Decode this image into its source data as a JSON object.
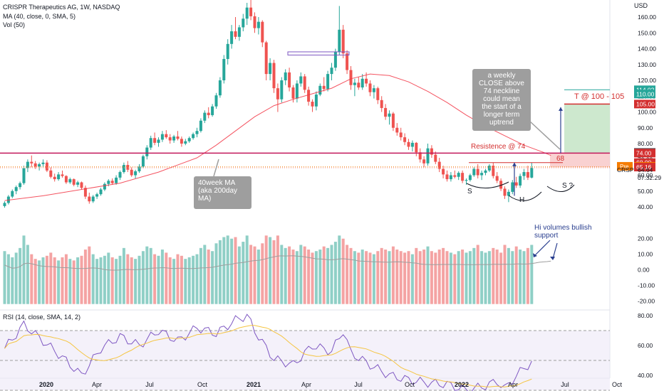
{
  "header": {
    "title": "CRISPR Therapeutics AG, 1W, NASDAQ",
    "ma": "MA (40, close, 0, SMA, 5)",
    "vol": "Vol (50)",
    "rsi": "RSI (14, close, SMA, 14, 2)"
  },
  "annotations": {
    "ma_callout": "40week MA\n(aka 200day\nMA)",
    "weekly_callout": "a weekly\nCLOSE above\n74 neckline\ncould mean\nthe start of a\nlonger term\nuptrend",
    "resistance": "Resistence @ 74",
    "target": "T @  100 - 105",
    "volumes": "Hi volumes bullish\nsupport",
    "s_left": "S",
    "h": "H",
    "s_right": "S ?",
    "level_68": "68"
  },
  "colors": {
    "up": "#26a69a",
    "down": "#ef5350",
    "vol_up": "#8fcfc6",
    "vol_down": "#f4a3a3",
    "ma": "#f23645",
    "rsi": "#7e57c2",
    "rsi_ma": "#f5c542",
    "resistance": "#c2185b",
    "target_fill": "#c8e6c9",
    "target_line": "#d32f2f",
    "arrow": "#2a3f8f"
  },
  "chart_data": {
    "type": "candlestick",
    "title": "CRISPR Therapeutics AG, 1W, NASDAQ",
    "price_axis": {
      "ticks": [
        160,
        150,
        140,
        130,
        120,
        110,
        100,
        90,
        80,
        70,
        60,
        50,
        40
      ],
      "labels": [
        "160.00",
        "150.00",
        "140.00",
        "130.00",
        "120.00",
        "110.00",
        "100.00",
        "90.00",
        "80.00",
        "70.00",
        "60.00",
        "50.00",
        "40.00"
      ]
    },
    "volume_axis": {
      "ticks": [
        20,
        10,
        0,
        -10,
        -20
      ],
      "labels": [
        "20.00",
        "10.00",
        "0.00",
        "-10.00",
        "-20.00"
      ]
    },
    "rsi_axis": {
      "ticks": [
        80,
        60,
        40
      ],
      "labels": [
        "80.00",
        "60.00",
        "40.00"
      ],
      "bands": [
        70,
        50,
        30
      ]
    },
    "time_axis": {
      "labels": [
        "2020",
        "Apr",
        "Jul",
        "Oct",
        "2021",
        "Apr",
        "Jul",
        "Oct",
        "2022",
        "Apr",
        "Jul",
        "Oct"
      ]
    },
    "last_price": "64.64",
    "countdown": "07:32:29",
    "symbol": "CRSP",
    "price_tags": [
      {
        "label": "114.02",
        "value": 114.02,
        "color": "#26a69a"
      },
      {
        "label": "110.00",
        "value": 110.0,
        "color": "#26a69a"
      },
      {
        "label": "105.00",
        "value": 105.0,
        "color": "#d32f2f"
      },
      {
        "label": "74.42",
        "value": 74.42,
        "color": "#434651"
      },
      {
        "label": "74.00",
        "value": 74.0,
        "color": "#d32f2f"
      },
      {
        "label": "68.00",
        "value": 68.0,
        "color": "#d32f2f"
      },
      {
        "label": "65.65",
        "value": 65.65,
        "color": "#f57c00",
        "prefix": "Pre"
      },
      {
        "label": "65.16",
        "value": 65.16,
        "color": "#d32f2f"
      }
    ],
    "levels": {
      "resistance": 74,
      "neckline_zone": [
        65,
        74
      ],
      "target": [
        100,
        105
      ]
    },
    "ohlc": [
      [
        40.5,
        43.5,
        39.5,
        42.5
      ],
      [
        42.5,
        47.5,
        41.5,
        46.5
      ],
      [
        46.5,
        51.0,
        45.5,
        50.0
      ],
      [
        50.0,
        53.5,
        48.0,
        52.5
      ],
      [
        52.5,
        56.0,
        51.0,
        55.0
      ],
      [
        55.0,
        66.0,
        54.0,
        64.5
      ],
      [
        64.5,
        70.0,
        62.0,
        68.5
      ],
      [
        68.5,
        72.5,
        65.0,
        67.5
      ],
      [
        67.5,
        69.0,
        64.0,
        65.5
      ],
      [
        65.5,
        68.0,
        63.0,
        67.0
      ],
      [
        67.0,
        70.0,
        65.0,
        68.0
      ],
      [
        68.0,
        69.5,
        62.0,
        63.0
      ],
      [
        63.0,
        65.0,
        58.0,
        59.0
      ],
      [
        59.0,
        61.0,
        56.0,
        57.5
      ],
      [
        57.5,
        62.0,
        56.5,
        60.5
      ],
      [
        60.5,
        63.0,
        58.5,
        59.5
      ],
      [
        59.5,
        60.0,
        54.5,
        55.5
      ],
      [
        55.5,
        58.5,
        54.5,
        57.5
      ],
      [
        57.5,
        58.0,
        53.0,
        54.0
      ],
      [
        54.0,
        56.5,
        52.5,
        55.5
      ],
      [
        55.5,
        56.0,
        51.0,
        52.0
      ],
      [
        52.0,
        53.5,
        45.0,
        46.5
      ],
      [
        46.5,
        49.0,
        42.0,
        43.5
      ],
      [
        43.5,
        47.5,
        42.5,
        46.5
      ],
      [
        46.5,
        49.0,
        45.0,
        48.0
      ],
      [
        48.0,
        52.0,
        47.0,
        51.0
      ],
      [
        51.0,
        55.5,
        50.0,
        54.5
      ],
      [
        54.5,
        57.5,
        53.0,
        56.5
      ],
      [
        56.5,
        58.0,
        54.0,
        55.0
      ],
      [
        55.0,
        60.0,
        54.0,
        58.5
      ],
      [
        58.5,
        63.0,
        57.0,
        62.0
      ],
      [
        62.0,
        68.0,
        61.0,
        66.5
      ],
      [
        66.5,
        69.0,
        62.0,
        63.5
      ],
      [
        63.5,
        65.0,
        59.0,
        60.0
      ],
      [
        60.0,
        63.5,
        58.0,
        62.5
      ],
      [
        62.5,
        67.0,
        61.5,
        65.5
      ],
      [
        65.5,
        73.0,
        64.5,
        72.0
      ],
      [
        72.0,
        79.0,
        70.0,
        77.5
      ],
      [
        77.5,
        85.0,
        76.0,
        83.5
      ],
      [
        83.5,
        87.0,
        79.0,
        80.5
      ],
      [
        80.5,
        84.0,
        78.0,
        82.5
      ],
      [
        82.5,
        88.0,
        81.0,
        86.0
      ],
      [
        86.0,
        88.5,
        83.0,
        84.0
      ],
      [
        84.0,
        86.0,
        80.0,
        82.0
      ],
      [
        82.0,
        85.5,
        80.5,
        84.5
      ],
      [
        84.5,
        88.0,
        82.0,
        83.0
      ],
      [
        83.0,
        84.5,
        78.0,
        80.0
      ],
      [
        80.0,
        83.0,
        79.0,
        81.5
      ],
      [
        81.5,
        84.5,
        80.5,
        83.5
      ],
      [
        83.5,
        87.0,
        82.5,
        86.0
      ],
      [
        86.0,
        90.0,
        84.0,
        88.0
      ],
      [
        88.0,
        96.0,
        87.0,
        94.5
      ],
      [
        94.5,
        101.0,
        93.0,
        99.5
      ],
      [
        99.5,
        103.0,
        96.0,
        98.0
      ],
      [
        98.0,
        105.0,
        97.0,
        103.5
      ],
      [
        103.5,
        112.0,
        102.0,
        110.5
      ],
      [
        110.5,
        122.0,
        109.0,
        120.0
      ],
      [
        120.0,
        136.0,
        118.0,
        133.5
      ],
      [
        133.5,
        146.0,
        130.0,
        143.0
      ],
      [
        143.0,
        155.0,
        140.0,
        151.0
      ],
      [
        151.0,
        160.0,
        146.0,
        147.5
      ],
      [
        147.5,
        155.0,
        145.0,
        153.5
      ],
      [
        153.5,
        162.0,
        151.0,
        159.0
      ],
      [
        159.0,
        169.0,
        155.0,
        166.0
      ],
      [
        166.0,
        171.0,
        158.0,
        160.5
      ],
      [
        160.5,
        163.0,
        150.0,
        153.0
      ],
      [
        153.0,
        160.0,
        149.0,
        157.0
      ],
      [
        157.0,
        158.0,
        141.0,
        144.0
      ],
      [
        144.0,
        145.0,
        120.0,
        124.0
      ],
      [
        124.0,
        134.0,
        120.0,
        131.0
      ],
      [
        131.0,
        133.0,
        112.0,
        115.0
      ],
      [
        115.0,
        118.0,
        100.0,
        108.0
      ],
      [
        108.0,
        122.0,
        106.0,
        120.0
      ],
      [
        120.0,
        127.0,
        117.0,
        125.0
      ],
      [
        125.0,
        128.0,
        113.0,
        115.5
      ],
      [
        115.5,
        117.0,
        106.0,
        108.5
      ],
      [
        108.5,
        120.0,
        106.0,
        118.0
      ],
      [
        118.0,
        125.0,
        116.0,
        122.5
      ],
      [
        122.5,
        124.0,
        112.0,
        114.0
      ],
      [
        114.0,
        116.0,
        104.0,
        106.5
      ],
      [
        106.5,
        108.0,
        100.0,
        103.5
      ],
      [
        103.5,
        113.0,
        101.0,
        111.0
      ],
      [
        111.0,
        118.0,
        110.0,
        116.5
      ],
      [
        116.5,
        122.0,
        113.0,
        114.5
      ],
      [
        114.5,
        126.0,
        113.0,
        124.0
      ],
      [
        124.0,
        131.0,
        120.0,
        128.0
      ],
      [
        128.0,
        140.0,
        126.0,
        138.0
      ],
      [
        138.0,
        167.0,
        136.0,
        152.0
      ],
      [
        152.0,
        155.0,
        134.0,
        137.0
      ],
      [
        137.0,
        139.0,
        124.0,
        126.5
      ],
      [
        126.5,
        129.0,
        114.0,
        117.0
      ],
      [
        117.0,
        121.0,
        110.0,
        118.5
      ],
      [
        118.5,
        122.0,
        114.0,
        115.5
      ],
      [
        115.5,
        124.0,
        114.0,
        121.0
      ],
      [
        121.0,
        125.0,
        116.0,
        118.0
      ],
      [
        118.0,
        120.0,
        110.0,
        112.5
      ],
      [
        112.5,
        117.0,
        108.5,
        115.0
      ],
      [
        115.0,
        116.0,
        105.0,
        107.5
      ],
      [
        107.5,
        110.0,
        100.0,
        102.5
      ],
      [
        102.5,
        105.0,
        95.0,
        97.0
      ],
      [
        97.0,
        101.0,
        92.0,
        99.0
      ],
      [
        99.0,
        100.0,
        88.0,
        90.0
      ],
      [
        90.0,
        93.0,
        85.0,
        87.0
      ],
      [
        87.0,
        90.0,
        82.0,
        84.0
      ],
      [
        84.0,
        86.5,
        79.0,
        81.0
      ],
      [
        81.0,
        83.0,
        76.0,
        78.0
      ],
      [
        78.0,
        82.0,
        75.0,
        80.5
      ],
      [
        80.5,
        81.0,
        72.0,
        74.5
      ],
      [
        74.5,
        77.0,
        68.0,
        70.0
      ],
      [
        70.0,
        72.0,
        65.0,
        67.5
      ],
      [
        67.5,
        80.0,
        66.0,
        77.0
      ],
      [
        77.0,
        79.0,
        71.0,
        73.0
      ],
      [
        73.0,
        75.0,
        67.0,
        68.5
      ],
      [
        68.5,
        71.0,
        62.0,
        64.0
      ],
      [
        64.0,
        66.0,
        58.0,
        60.5
      ],
      [
        60.5,
        63.0,
        56.0,
        57.5
      ],
      [
        57.5,
        62.0,
        56.0,
        60.0
      ],
      [
        60.0,
        63.0,
        58.0,
        59.0
      ],
      [
        59.0,
        62.5,
        57.0,
        61.5
      ],
      [
        61.5,
        63.0,
        55.0,
        56.5
      ],
      [
        56.5,
        58.0,
        54.0,
        57.0
      ],
      [
        57.0,
        61.0,
        56.0,
        60.0
      ],
      [
        60.0,
        65.0,
        59.0,
        64.0
      ],
      [
        64.0,
        67.0,
        58.0,
        60.0
      ],
      [
        60.0,
        63.0,
        57.0,
        61.5
      ],
      [
        61.5,
        64.0,
        60.0,
        63.0
      ],
      [
        63.0,
        67.0,
        62.0,
        66.0
      ],
      [
        66.0,
        68.0,
        58.0,
        59.5
      ],
      [
        59.5,
        62.0,
        55.0,
        56.5
      ],
      [
        56.5,
        58.0,
        50.0,
        51.5
      ],
      [
        51.5,
        53.0,
        45.0,
        47.0
      ],
      [
        47.0,
        51.0,
        43.0,
        49.5
      ],
      [
        49.5,
        57.0,
        48.0,
        55.5
      ],
      [
        55.5,
        59.0,
        52.0,
        53.5
      ],
      [
        53.5,
        61.0,
        52.0,
        59.5
      ],
      [
        59.5,
        64.0,
        57.0,
        62.0
      ],
      [
        62.0,
        66.0,
        57.0,
        58.5
      ],
      [
        58.5,
        68.0,
        58.0,
        64.64
      ]
    ],
    "ma40": [
      [
        0,
        44.0
      ],
      [
        10,
        47.0
      ],
      [
        20,
        51.0
      ],
      [
        30,
        55.0
      ],
      [
        40,
        62.0
      ],
      [
        50,
        71.0
      ],
      [
        55,
        79.0
      ],
      [
        60,
        88.0
      ],
      [
        65,
        97.0
      ],
      [
        70,
        104.0
      ],
      [
        75,
        108.0
      ],
      [
        80,
        111.5
      ],
      [
        85,
        115.0
      ],
      [
        90,
        121.0
      ],
      [
        95,
        124.0
      ],
      [
        100,
        123.0
      ],
      [
        105,
        119.0
      ],
      [
        110,
        113.0
      ],
      [
        115,
        106.0
      ],
      [
        120,
        98.0
      ],
      [
        125,
        91.0
      ],
      [
        130,
        85.0
      ],
      [
        135,
        79.0
      ],
      [
        140,
        74.5
      ],
      [
        142,
        72.5
      ]
    ],
    "volume": [
      12,
      10,
      8,
      11,
      14,
      22,
      16,
      10,
      7,
      6,
      8,
      9,
      11,
      8,
      6,
      8,
      10,
      7,
      6,
      8,
      9,
      13,
      15,
      10,
      7,
      8,
      9,
      11,
      8,
      7,
      9,
      14,
      10,
      8,
      7,
      9,
      12,
      15,
      14,
      10,
      9,
      13,
      11,
      8,
      7,
      10,
      9,
      7,
      8,
      9,
      10,
      14,
      16,
      13,
      12,
      17,
      19,
      21,
      22,
      20,
      21,
      15,
      18,
      22,
      16,
      15,
      13,
      17,
      22,
      21,
      19,
      22,
      16,
      14,
      15,
      13,
      12,
      16,
      15,
      13,
      11,
      12,
      13,
      15,
      14,
      16,
      18,
      22,
      20,
      16,
      14,
      12,
      11,
      13,
      12,
      11,
      10,
      12,
      14,
      13,
      12,
      15,
      13,
      12,
      11,
      12,
      10,
      14,
      12,
      13,
      15,
      12,
      11,
      13,
      14,
      12,
      11,
      10,
      12,
      13,
      11,
      12,
      14,
      16,
      12,
      11,
      12,
      14,
      13,
      11,
      16,
      14,
      12,
      15,
      13,
      12,
      14,
      16,
      18,
      22,
      17,
      15,
      20
    ],
    "rsi": [
      [
        0,
        58
      ],
      [
        5,
        74
      ],
      [
        10,
        63
      ],
      [
        15,
        52
      ],
      [
        20,
        40
      ],
      [
        25,
        58
      ],
      [
        30,
        66
      ],
      [
        35,
        60
      ],
      [
        40,
        70
      ],
      [
        45,
        63
      ],
      [
        50,
        72
      ],
      [
        55,
        68
      ],
      [
        60,
        77
      ],
      [
        63,
        80
      ],
      [
        65,
        70
      ],
      [
        67,
        62
      ],
      [
        70,
        51
      ],
      [
        75,
        47
      ],
      [
        80,
        60
      ],
      [
        85,
        56
      ],
      [
        88,
        70
      ],
      [
        90,
        55
      ],
      [
        95,
        47
      ],
      [
        100,
        40
      ],
      [
        105,
        37
      ],
      [
        110,
        35
      ],
      [
        115,
        34
      ],
      [
        120,
        30
      ],
      [
        125,
        33
      ],
      [
        128,
        36
      ],
      [
        130,
        31
      ],
      [
        132,
        37
      ],
      [
        135,
        45
      ],
      [
        138,
        50
      ],
      [
        142,
        52
      ]
    ]
  }
}
